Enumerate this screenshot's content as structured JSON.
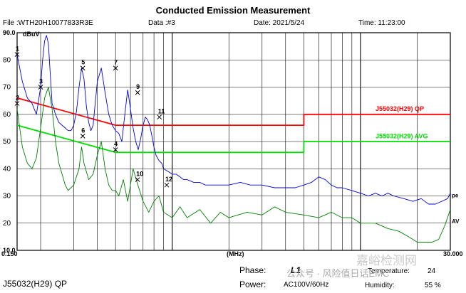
{
  "header": {
    "title": "Conducted Emission Measurement",
    "file": "File :WTH20H10077833R3E",
    "data": "Data :#3",
    "date": "Date: 2021/5/24",
    "time": "Time: 11:23:00"
  },
  "footer": {
    "limit_name": "J55032(H29) QP",
    "phase_label": "Phase:",
    "phase_value": "L1",
    "power_label": "Power:",
    "power_value": "AC100V/60Hz",
    "temperature_label": "Temperature:",
    "temperature_value": "24",
    "humidity_label": "Humidity:",
    "humidity_value": "55 %"
  },
  "watermark": {
    "wechat": "公众号 · 风险值日话EMC",
    "brand": "嘉峪检测网"
  },
  "colors": {
    "frame": "#000000",
    "qp_limit": "#ff0000",
    "avg_limit": "#00dd00",
    "peak_trace": "#0000e0",
    "avg_trace": "#008000",
    "marker": "#000000"
  },
  "chart_data": {
    "type": "line",
    "ylabel": "dBuV",
    "xlabel": "(MHz)",
    "x_scale": "log",
    "xlim": [
      0.15,
      30.0
    ],
    "ylim": [
      10.0,
      90.0
    ],
    "x_tick_labels": [
      "0.150",
      "30.000"
    ],
    "y_ticks": [
      "90.0",
      "80",
      "70",
      "60",
      "50",
      "40",
      "30",
      "20",
      "10.0"
    ],
    "grid": true,
    "series": [
      {
        "name": "J55032(H29) QP",
        "role": "limit_qp",
        "x": [
          0.15,
          0.5,
          5.0,
          5.0,
          30.0
        ],
        "y": [
          66,
          56,
          56,
          60,
          60
        ]
      },
      {
        "name": "J55032(H29) AVG",
        "role": "limit_avg",
        "x": [
          0.15,
          0.5,
          5.0,
          5.0,
          30.0
        ],
        "y": [
          56,
          46,
          46,
          50,
          50
        ]
      },
      {
        "name": "peak",
        "role": "trace_peak",
        "x": [
          0.15,
          0.16,
          0.17,
          0.18,
          0.19,
          0.2,
          0.205,
          0.21,
          0.215,
          0.22,
          0.225,
          0.23,
          0.24,
          0.25,
          0.26,
          0.27,
          0.28,
          0.29,
          0.3,
          0.31,
          0.32,
          0.33,
          0.34,
          0.35,
          0.36,
          0.37,
          0.38,
          0.39,
          0.4,
          0.42,
          0.44,
          0.46,
          0.48,
          0.5,
          0.52,
          0.54,
          0.56,
          0.58,
          0.6,
          0.62,
          0.64,
          0.66,
          0.68,
          0.7,
          0.72,
          0.74,
          0.76,
          0.78,
          0.8,
          0.82,
          0.85,
          0.88,
          0.9,
          0.95,
          1.0,
          1.05,
          1.1,
          1.15,
          1.2,
          1.3,
          1.4,
          1.5,
          1.7,
          2.0,
          2.3,
          2.6,
          3.0,
          3.5,
          4.0,
          4.5,
          5.0,
          5.5,
          6.0,
          6.5,
          7.0,
          7.5,
          8.0,
          9.0,
          10.0,
          11.0,
          12.0,
          13.0,
          14.0,
          15.0,
          17.0,
          19.0,
          21.0,
          23.0,
          25.0,
          27.0,
          29.0,
          30.0
        ],
        "y": [
          82,
          72,
          66,
          64,
          60,
          70,
          80,
          87,
          89,
          86,
          75,
          64,
          60,
          57,
          56,
          55,
          54,
          54,
          56,
          61,
          70,
          77,
          73,
          63,
          57,
          54,
          56,
          64,
          72,
          77,
          68,
          60,
          56,
          54,
          53,
          50,
          60,
          69,
          62,
          55,
          50,
          47,
          51,
          56,
          59,
          58,
          56,
          52,
          48,
          45,
          43,
          42,
          40,
          39,
          38,
          38,
          37,
          36,
          36,
          35,
          35,
          34,
          34,
          34,
          35,
          34,
          34,
          33,
          33,
          33,
          34,
          35,
          37,
          36,
          34,
          33,
          33,
          32,
          31,
          30,
          31,
          30,
          31,
          30,
          29,
          28,
          29,
          27,
          27,
          28,
          29,
          31
        ]
      },
      {
        "name": "avg",
        "role": "trace_avg",
        "x": [
          0.15,
          0.16,
          0.17,
          0.18,
          0.19,
          0.2,
          0.21,
          0.22,
          0.23,
          0.24,
          0.25,
          0.26,
          0.27,
          0.28,
          0.3,
          0.32,
          0.33,
          0.34,
          0.36,
          0.38,
          0.4,
          0.42,
          0.44,
          0.46,
          0.48,
          0.5,
          0.52,
          0.55,
          0.58,
          0.6,
          0.62,
          0.65,
          0.7,
          0.75,
          0.8,
          0.85,
          0.9,
          1.0,
          1.1,
          1.2,
          1.4,
          1.6,
          1.8,
          2.0,
          2.5,
          3.0,
          3.5,
          4.0,
          5.0,
          6.0,
          7.0,
          8.0,
          9.0,
          10.0,
          12.0,
          14.0,
          16.0,
          18.0,
          20.0,
          22.0,
          24.0,
          26.0,
          28.0,
          30.0
        ],
        "y": [
          62,
          48,
          42,
          40,
          44,
          55,
          66,
          70,
          62,
          50,
          42,
          38,
          34,
          32,
          34,
          40,
          48,
          42,
          36,
          38,
          45,
          50,
          40,
          34,
          32,
          32,
          30,
          36,
          28,
          34,
          40,
          35,
          28,
          24,
          28,
          30,
          24,
          22,
          26,
          22,
          25,
          20,
          24,
          22,
          24,
          23,
          26,
          24,
          23,
          22,
          24,
          22,
          22,
          20,
          20,
          18,
          17,
          15,
          13,
          13,
          13,
          14,
          19,
          25
        ]
      }
    ],
    "markers": [
      {
        "label": "1",
        "x": 0.15,
        "y": 82
      },
      {
        "label": "2",
        "x": 0.15,
        "y": 64
      },
      {
        "label": "3",
        "x": 0.2,
        "y": 70
      },
      {
        "label": "4",
        "x": 0.5,
        "y": 47
      },
      {
        "label": "5",
        "x": 0.335,
        "y": 77
      },
      {
        "label": "6",
        "x": 0.335,
        "y": 52
      },
      {
        "label": "7",
        "x": 0.5,
        "y": 77
      },
      {
        "label": "9",
        "x": 0.655,
        "y": 68
      },
      {
        "label": "10",
        "x": 0.655,
        "y": 36
      },
      {
        "label": "11",
        "x": 0.855,
        "y": 59
      },
      {
        "label": "12",
        "x": 0.935,
        "y": 34
      }
    ],
    "annotations": [
      "J55032(H29) QP",
      "J55032(H29) AVG",
      "pe",
      "AV"
    ]
  }
}
